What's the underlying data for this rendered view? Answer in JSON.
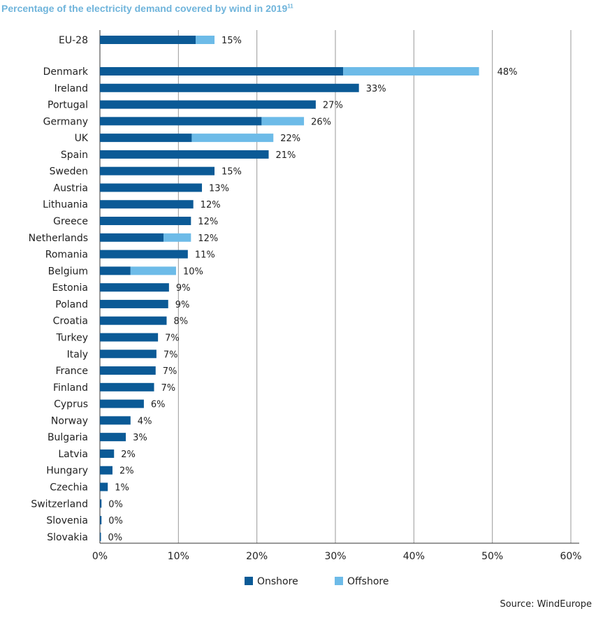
{
  "title": "Percentage of the electricity demand covered by wind in 2019",
  "title_footnote": "11",
  "source": "Source: WindEurope",
  "colors": {
    "onshore": "#0b5a96",
    "offshore": "#6dbbe8",
    "grid": "#9a9a9a"
  },
  "chart_data": {
    "type": "bar",
    "orientation": "horizontal",
    "stacked": true,
    "title": "Percentage of the electricity demand covered by wind in 2019",
    "xlim": [
      0,
      60
    ],
    "xticks": [
      "0%",
      "10%",
      "20%",
      "30%",
      "40%",
      "50%",
      "60%"
    ],
    "xtick_values": [
      0,
      10,
      20,
      30,
      40,
      50,
      60
    ],
    "grid": "vertical",
    "legend_position": "bottom",
    "categories": [
      "EU-28",
      "Denmark",
      "Ireland",
      "Portugal",
      "Germany",
      "UK",
      "Spain",
      "Sweden",
      "Austria",
      "Lithuania",
      "Greece",
      "Netherlands",
      "Romania",
      "Belgium",
      "Estonia",
      "Poland",
      "Croatia",
      "Turkey",
      "Italy",
      "France",
      "Finland",
      "Cyprus",
      "Norway",
      "Bulgaria",
      "Latvia",
      "Hungary",
      "Czechia",
      "Switzerland",
      "Slovenia",
      "Slovakia"
    ],
    "series": [
      {
        "name": "Onshore",
        "values": [
          12.2,
          31.0,
          33.0,
          27.5,
          20.6,
          11.7,
          21.5,
          14.6,
          13.0,
          11.9,
          11.6,
          8.1,
          11.2,
          3.9,
          8.8,
          8.7,
          8.5,
          7.4,
          7.2,
          7.1,
          6.9,
          5.6,
          3.9,
          3.3,
          1.8,
          1.6,
          1.0,
          0.2,
          0.2,
          0.1
        ]
      },
      {
        "name": "Offshore",
        "values": [
          2.4,
          17.3,
          0,
          0,
          5.4,
          10.4,
          0,
          0,
          0,
          0,
          0,
          3.5,
          0,
          5.8,
          0,
          0,
          0,
          0,
          0,
          0,
          0,
          0,
          0,
          0,
          0,
          0,
          0,
          0,
          0,
          0
        ]
      }
    ],
    "data_labels": [
      "15%",
      "48%",
      "33%",
      "27%",
      "26%",
      "22%",
      "21%",
      "15%",
      "13%",
      "12%",
      "12%",
      "12%",
      "11%",
      "10%",
      "9%",
      "9%",
      "8%",
      "7%",
      "7%",
      "7%",
      "7%",
      "6%",
      "4%",
      "3%",
      "2%",
      "2%",
      "1%",
      "0%",
      "0%",
      "0%"
    ]
  }
}
